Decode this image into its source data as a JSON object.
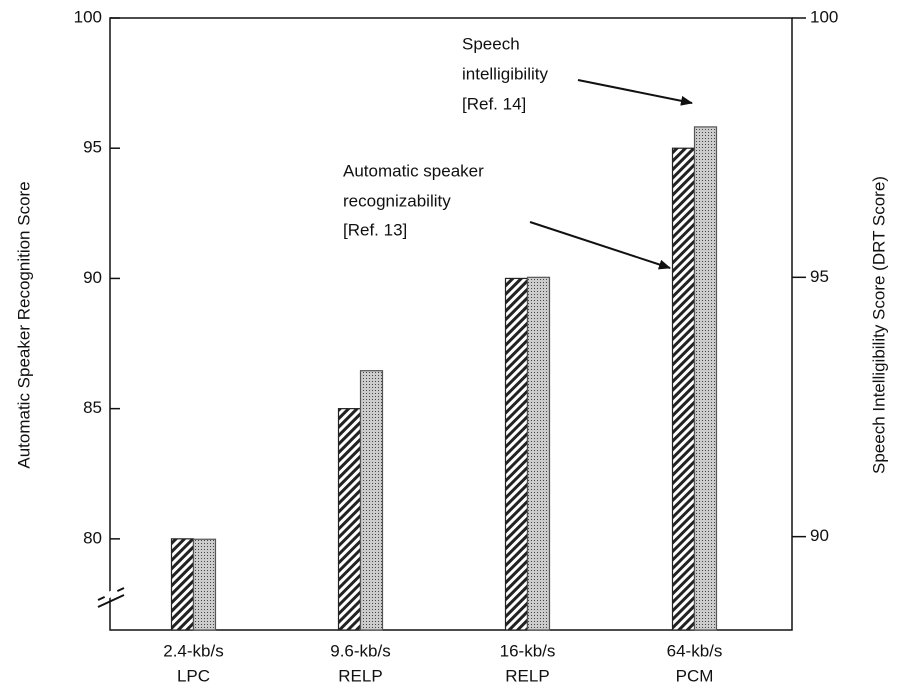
{
  "chart_data": {
    "type": "bar",
    "categories": [
      [
        "2.4-kb/s",
        "LPC"
      ],
      [
        "9.6-kb/s",
        "RELP"
      ],
      [
        "16-kb/s",
        "RELP"
      ],
      [
        "64-kb/s",
        "PCM"
      ]
    ],
    "series": [
      {
        "color": "#222222",
        "pattern": "hatch",
        "values": [
          80,
          85,
          90,
          95
        ]
      },
      {
        "color": "#555555",
        "pattern": "dots",
        "axis": "y2",
        "values": [
          89.95,
          93.2,
          95.0,
          97.9
        ]
      }
    ],
    "ylabel": "Automatic Speaker Recognition Score",
    "y2label": "Speech Intelligibility Score (DRT Score)",
    "ylim": [
      76.5,
      100
    ],
    "yticks": [
      80,
      85,
      90,
      95,
      100
    ],
    "y2lim": [
      88.2,
      100
    ],
    "y2ticks": [
      90,
      95,
      100
    ],
    "annotations": [
      [
        "Speech",
        "intelligibility",
        "[Ref. 14]"
      ],
      [
        "Automatic speaker",
        "recognizability",
        "[Ref. 13]"
      ]
    ]
  }
}
